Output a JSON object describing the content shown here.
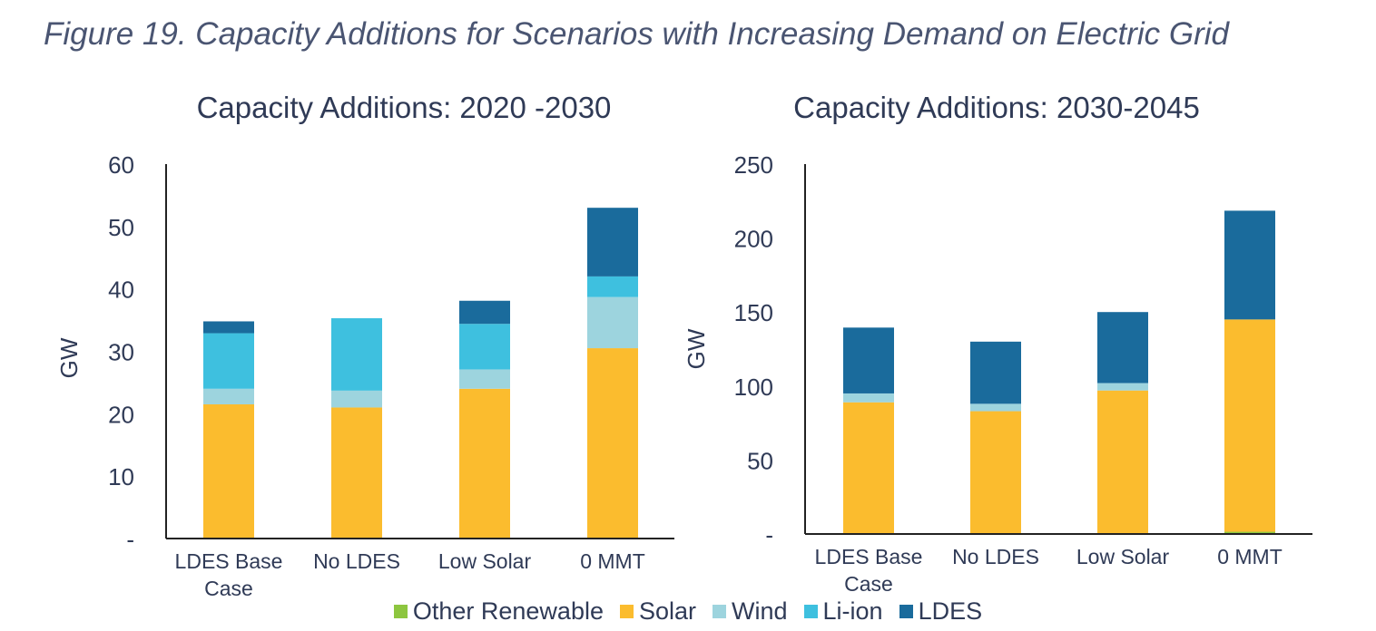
{
  "figure_caption": "Figure 19. Capacity Additions for Scenarios with Increasing Demand on Electric Grid",
  "legend": [
    {
      "name": "Other Renewable",
      "color": "#8dc63f"
    },
    {
      "name": "Solar",
      "color": "#fbbc2e"
    },
    {
      "name": "Wind",
      "color": "#9dd4de"
    },
    {
      "name": "Li-ion",
      "color": "#3ec0df"
    },
    {
      "name": "LDES",
      "color": "#1a6b9c"
    }
  ],
  "chart_data": [
    {
      "type": "bar",
      "stacked": true,
      "title": "Capacity Additions: 2020 -2030",
      "xlabel": "",
      "ylabel": "GW",
      "ylim": [
        0,
        60
      ],
      "yticks": [
        0,
        10,
        20,
        30,
        40,
        50,
        60
      ],
      "ytick_labels": [
        "-",
        "10",
        "20",
        "30",
        "40",
        "50",
        "60"
      ],
      "categories": [
        [
          "LDES Base",
          "Case"
        ],
        [
          "No LDES"
        ],
        [
          "Low Solar"
        ],
        [
          "0 MMT"
        ]
      ],
      "series": [
        {
          "name": "Other Renewable",
          "color": "#8dc63f",
          "values": [
            0,
            0,
            0,
            0
          ]
        },
        {
          "name": "Solar",
          "color": "#fbbc2e",
          "values": [
            21.5,
            21,
            24,
            30.5
          ]
        },
        {
          "name": "Wind",
          "color": "#9dd4de",
          "values": [
            2.5,
            2.7,
            3.1,
            8.2
          ]
        },
        {
          "name": "Li-ion",
          "color": "#3ec0df",
          "values": [
            8.9,
            11.6,
            7.3,
            3.3
          ]
        },
        {
          "name": "LDES",
          "color": "#1a6b9c",
          "values": [
            1.9,
            0,
            3.7,
            11
          ]
        }
      ],
      "grid": false,
      "legend_position": "bottom"
    },
    {
      "type": "bar",
      "stacked": true,
      "title": "Capacity Additions: 2030-2045",
      "xlabel": "",
      "ylabel": "GW",
      "ylim": [
        0,
        250
      ],
      "yticks": [
        0,
        50,
        100,
        150,
        200,
        250
      ],
      "ytick_labels": [
        "-",
        "50",
        "100",
        "150",
        "200",
        "250"
      ],
      "categories": [
        [
          "LDES Base",
          "Case"
        ],
        [
          "No LDES"
        ],
        [
          "Low Solar"
        ],
        [
          "0 MMT"
        ]
      ],
      "series": [
        {
          "name": "Other Renewable",
          "color": "#8dc63f",
          "values": [
            0,
            0,
            0,
            1.5
          ]
        },
        {
          "name": "Solar",
          "color": "#fbbc2e",
          "values": [
            89,
            83,
            97,
            143.5
          ]
        },
        {
          "name": "Wind",
          "color": "#9dd4de",
          "values": [
            6,
            5,
            5,
            0
          ]
        },
        {
          "name": "Li-ion",
          "color": "#3ec0df",
          "values": [
            0,
            0,
            0,
            0
          ]
        },
        {
          "name": "LDES",
          "color": "#1a6b9c",
          "values": [
            44.5,
            42,
            48,
            73.5
          ]
        }
      ],
      "grid": false,
      "legend_position": "bottom"
    }
  ]
}
